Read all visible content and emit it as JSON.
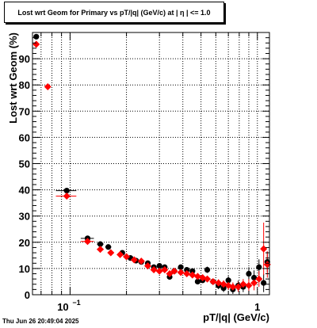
{
  "title": "Lost wrt Geom for Primary vs pT/|q| (GeV/c) at |  η  | <= 1.0",
  "timestamp": "Thu Jun 26 20:49:04 2025",
  "chart_data": {
    "type": "scatter",
    "xlabel": "pT/|q| (GeV/c)",
    "ylabel": "Lost wrt Geom (%)",
    "xscale": "log",
    "xlim": [
      0.063,
      1.16
    ],
    "ylim": [
      0,
      100
    ],
    "grid": true,
    "x_tick_labels": [
      {
        "value": 0.1,
        "base": "10",
        "exp": "−1"
      },
      {
        "value": 1,
        "base": "1",
        "exp": ""
      }
    ],
    "y_tick_labels": [
      {
        "value": 0,
        "label": "0"
      },
      {
        "value": 10,
        "label": "10"
      },
      {
        "value": 20,
        "label": "20"
      },
      {
        "value": 30,
        "label": "30"
      },
      {
        "value": 40,
        "label": "40"
      },
      {
        "value": 50,
        "label": "50"
      },
      {
        "value": 60,
        "label": "60"
      },
      {
        "value": 70,
        "label": "70"
      },
      {
        "value": 80,
        "label": "80"
      },
      {
        "value": 90,
        "label": "90"
      }
    ],
    "series": [
      {
        "color": "#000000",
        "marker": "circle",
        "points": [
          {
            "x": 0.066,
            "y": 98.4,
            "xerr": 0.002,
            "yerr": 0
          },
          {
            "x": 0.096,
            "y": 39.7,
            "xerr": 0.012,
            "yerr": 0
          },
          {
            "x": 0.124,
            "y": 21.5,
            "xerr": 0.01,
            "yerr": 0
          },
          {
            "x": 0.145,
            "y": 19.3,
            "xerr": 0.006,
            "yerr": 0
          },
          {
            "x": 0.16,
            "y": 18.2,
            "xerr": 0.006,
            "yerr": 0
          },
          {
            "x": 0.19,
            "y": 16.0,
            "xerr": 0.004,
            "yerr": 0
          },
          {
            "x": 0.21,
            "y": 14.0,
            "xerr": 0.004,
            "yerr": 0.5
          },
          {
            "x": 0.225,
            "y": 13.0,
            "xerr": 0.004,
            "yerr": 0.5
          },
          {
            "x": 0.24,
            "y": 12.5,
            "xerr": 0.004,
            "yerr": 0.5
          },
          {
            "x": 0.26,
            "y": 12.0,
            "xerr": 0.004,
            "yerr": 0.5
          },
          {
            "x": 0.28,
            "y": 10.5,
            "xerr": 0.004,
            "yerr": 0.6
          },
          {
            "x": 0.3,
            "y": 11.0,
            "xerr": 0.004,
            "yerr": 0.6
          },
          {
            "x": 0.32,
            "y": 10.5,
            "xerr": 0.004,
            "yerr": 0.6
          },
          {
            "x": 0.34,
            "y": 6.8,
            "xerr": 0.004,
            "yerr": 0.7
          },
          {
            "x": 0.36,
            "y": 9.0,
            "xerr": 0.004,
            "yerr": 0.7
          },
          {
            "x": 0.39,
            "y": 10.5,
            "xerr": 0.004,
            "yerr": 0.8
          },
          {
            "x": 0.42,
            "y": 9.5,
            "xerr": 0.004,
            "yerr": 0.8
          },
          {
            "x": 0.45,
            "y": 9.0,
            "xerr": 0.004,
            "yerr": 0.9
          },
          {
            "x": 0.48,
            "y": 5.0,
            "xerr": 0.004,
            "yerr": 1.0
          },
          {
            "x": 0.51,
            "y": 5.5,
            "xerr": 0.004,
            "yerr": 1.0
          },
          {
            "x": 0.54,
            "y": 9.5,
            "xerr": 0.004,
            "yerr": 1.2
          },
          {
            "x": 0.58,
            "y": 5.0,
            "xerr": 0.004,
            "yerr": 1.2
          },
          {
            "x": 0.62,
            "y": 3.5,
            "xerr": 0.004,
            "yerr": 1.4
          },
          {
            "x": 0.66,
            "y": 2.5,
            "xerr": 0.004,
            "yerr": 1.5
          },
          {
            "x": 0.7,
            "y": 5.5,
            "xerr": 0.004,
            "yerr": 1.6
          },
          {
            "x": 0.74,
            "y": 2.0,
            "xerr": 0.004,
            "yerr": 1.7
          },
          {
            "x": 0.79,
            "y": 3.5,
            "xerr": 0.004,
            "yerr": 1.9
          },
          {
            "x": 0.84,
            "y": 3.0,
            "xerr": 0.004,
            "yerr": 2.0
          },
          {
            "x": 0.9,
            "y": 8.0,
            "xerr": 0.004,
            "yerr": 2.5
          },
          {
            "x": 0.96,
            "y": 6.5,
            "xerr": 0.004,
            "yerr": 2.8
          },
          {
            "x": 1.02,
            "y": 10.5,
            "xerr": 0.004,
            "yerr": 3.0
          },
          {
            "x": 1.08,
            "y": 4.5,
            "xerr": 0.004,
            "yerr": 3.5
          },
          {
            "x": 1.13,
            "y": 12.5,
            "xerr": 0.004,
            "yerr": 4.0
          }
        ]
      },
      {
        "color": "#ff0000",
        "marker": "diamond",
        "points": [
          {
            "x": 0.066,
            "y": 95.5,
            "xerr": 0.002,
            "yerr": 0
          },
          {
            "x": 0.076,
            "y": 79.3,
            "xerr": 0.002,
            "yerr": 0
          },
          {
            "x": 0.096,
            "y": 37.6,
            "xerr": 0.012,
            "yerr": 0
          },
          {
            "x": 0.124,
            "y": 20.3,
            "xerr": 0.01,
            "yerr": 0
          },
          {
            "x": 0.145,
            "y": 17.3,
            "xerr": 0.006,
            "yerr": 0
          },
          {
            "x": 0.165,
            "y": 16.0,
            "xerr": 0.006,
            "yerr": 0
          },
          {
            "x": 0.185,
            "y": 15.3,
            "xerr": 0.004,
            "yerr": 0
          },
          {
            "x": 0.2,
            "y": 14.5,
            "xerr": 0.004,
            "yerr": 0.5
          },
          {
            "x": 0.22,
            "y": 13.3,
            "xerr": 0.004,
            "yerr": 0.5
          },
          {
            "x": 0.24,
            "y": 12.8,
            "xerr": 0.004,
            "yerr": 0.5
          },
          {
            "x": 0.26,
            "y": 11.0,
            "xerr": 0.004,
            "yerr": 0.6
          },
          {
            "x": 0.28,
            "y": 9.5,
            "xerr": 0.004,
            "yerr": 0.6
          },
          {
            "x": 0.3,
            "y": 9.0,
            "xerr": 0.004,
            "yerr": 0.6
          },
          {
            "x": 0.32,
            "y": 9.5,
            "xerr": 0.004,
            "yerr": 0.6
          },
          {
            "x": 0.34,
            "y": 8.0,
            "xerr": 0.004,
            "yerr": 0.7
          },
          {
            "x": 0.36,
            "y": 9.0,
            "xerr": 0.004,
            "yerr": 0.7
          },
          {
            "x": 0.39,
            "y": 8.5,
            "xerr": 0.004,
            "yerr": 0.8
          },
          {
            "x": 0.42,
            "y": 8.0,
            "xerr": 0.004,
            "yerr": 0.8
          },
          {
            "x": 0.45,
            "y": 7.5,
            "xerr": 0.004,
            "yerr": 0.9
          },
          {
            "x": 0.48,
            "y": 7.0,
            "xerr": 0.004,
            "yerr": 1.0
          },
          {
            "x": 0.51,
            "y": 6.5,
            "xerr": 0.004,
            "yerr": 1.0
          },
          {
            "x": 0.54,
            "y": 6.0,
            "xerr": 0.004,
            "yerr": 1.2
          },
          {
            "x": 0.58,
            "y": 5.0,
            "xerr": 0.004,
            "yerr": 1.2
          },
          {
            "x": 0.62,
            "y": 4.5,
            "xerr": 0.004,
            "yerr": 1.4
          },
          {
            "x": 0.66,
            "y": 4.0,
            "xerr": 0.004,
            "yerr": 1.5
          },
          {
            "x": 0.7,
            "y": 3.5,
            "xerr": 0.004,
            "yerr": 1.6
          },
          {
            "x": 0.74,
            "y": 3.0,
            "xerr": 0.004,
            "yerr": 1.7
          },
          {
            "x": 0.79,
            "y": 3.0,
            "xerr": 0.004,
            "yerr": 1.9
          },
          {
            "x": 0.84,
            "y": 4.0,
            "xerr": 0.004,
            "yerr": 2.0
          },
          {
            "x": 0.9,
            "y": 3.5,
            "xerr": 0.004,
            "yerr": 2.5
          },
          {
            "x": 0.96,
            "y": 4.5,
            "xerr": 0.004,
            "yerr": 2.8
          },
          {
            "x": 1.02,
            "y": 6.0,
            "xerr": 0.004,
            "yerr": 3.0
          },
          {
            "x": 1.08,
            "y": 17.5,
            "xerr": 0.004,
            "yerr": 10.0
          },
          {
            "x": 1.13,
            "y": 11.5,
            "xerr": 0.004,
            "yerr": 5.0
          }
        ]
      }
    ]
  }
}
